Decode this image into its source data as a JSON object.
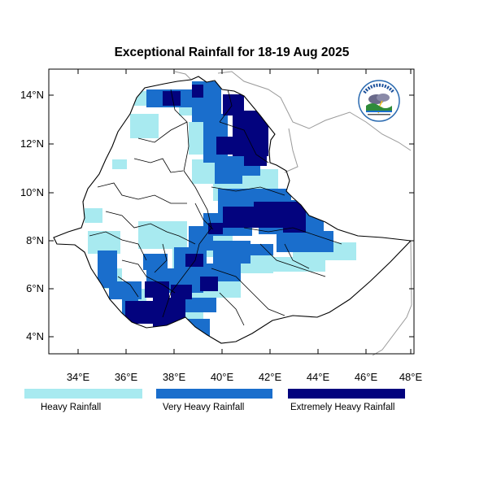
{
  "title": "Exceptional Rainfall for 18-19 Aug 2025",
  "axes": {
    "lat_labels": [
      "14°N",
      "12°N",
      "10°N",
      "8°N",
      "6°N",
      "4°N"
    ],
    "lon_labels": [
      "34°E",
      "36°E",
      "38°E",
      "40°E",
      "42°E",
      "44°E",
      "46°E",
      "48°E"
    ]
  },
  "legend": [
    {
      "label": "Heavy Rainfall",
      "color": "#a8eaf0"
    },
    {
      "label": "Very Heavy Rainfall",
      "color": "#1a6ecc"
    },
    {
      "label": "Extremely Heavy Rainfall",
      "color": "#03037e"
    }
  ],
  "logo": {
    "name": "Ethiopian Meteorology Institute",
    "text": "የኢትዮጵያ ሜቲዎሮሎጂ ኢንስቲትዩት"
  },
  "colors": {
    "heavy": "#a8eaf0",
    "very_heavy": "#1a6ecc",
    "extreme": "#03037e",
    "border": "#000000",
    "neighbor_border": "#9a9a9a"
  }
}
